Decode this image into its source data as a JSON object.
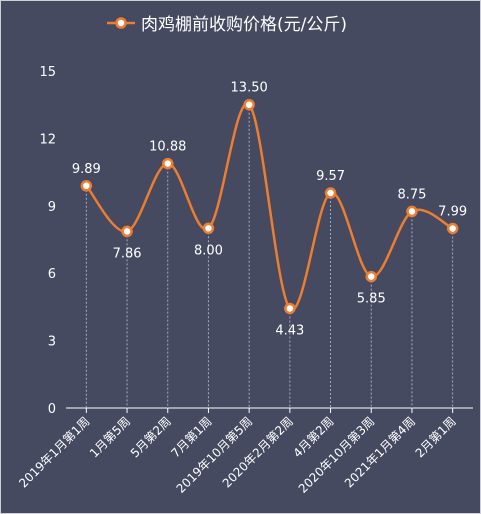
{
  "colors": {
    "background": "#454a61",
    "line": "#ed7d31",
    "marker_fill": "#ffffff",
    "text": "#ffffff",
    "axis": "#ffffff",
    "dropline": "#a9acba"
  },
  "legend": {
    "icon": "circle-marker-line-icon"
  },
  "chart_data": {
    "type": "line",
    "title": "",
    "xlabel": "",
    "ylabel": "",
    "legend_position": "top",
    "smooth": true,
    "grid": false,
    "drop_lines": true,
    "ylim": [
      0,
      15
    ],
    "yticks": [
      "0",
      "3",
      "6",
      "9",
      "12",
      "15"
    ],
    "categories": [
      "2019年1月第1周",
      "1月第5周",
      "5月第2周",
      "7月第1周",
      "2019年10月第5周",
      "2020年2月第2周",
      "4月第2周",
      "2020年10月第3周",
      "2021年1月第4周",
      "2月第1周"
    ],
    "series": [
      {
        "name": "肉鸡棚前收购价格(元/公斤)",
        "values": [
          9.89,
          7.86,
          10.88,
          8.0,
          13.5,
          4.43,
          9.57,
          5.85,
          8.75,
          7.99
        ],
        "labels": [
          "9.89",
          "7.86",
          "10.88",
          "8.00",
          "13.50",
          "4.43",
          "9.57",
          "5.85",
          "8.75",
          "7.99"
        ],
        "label_side": [
          "above",
          "below",
          "above",
          "below",
          "above",
          "below",
          "above",
          "below",
          "above",
          "above"
        ]
      }
    ]
  }
}
